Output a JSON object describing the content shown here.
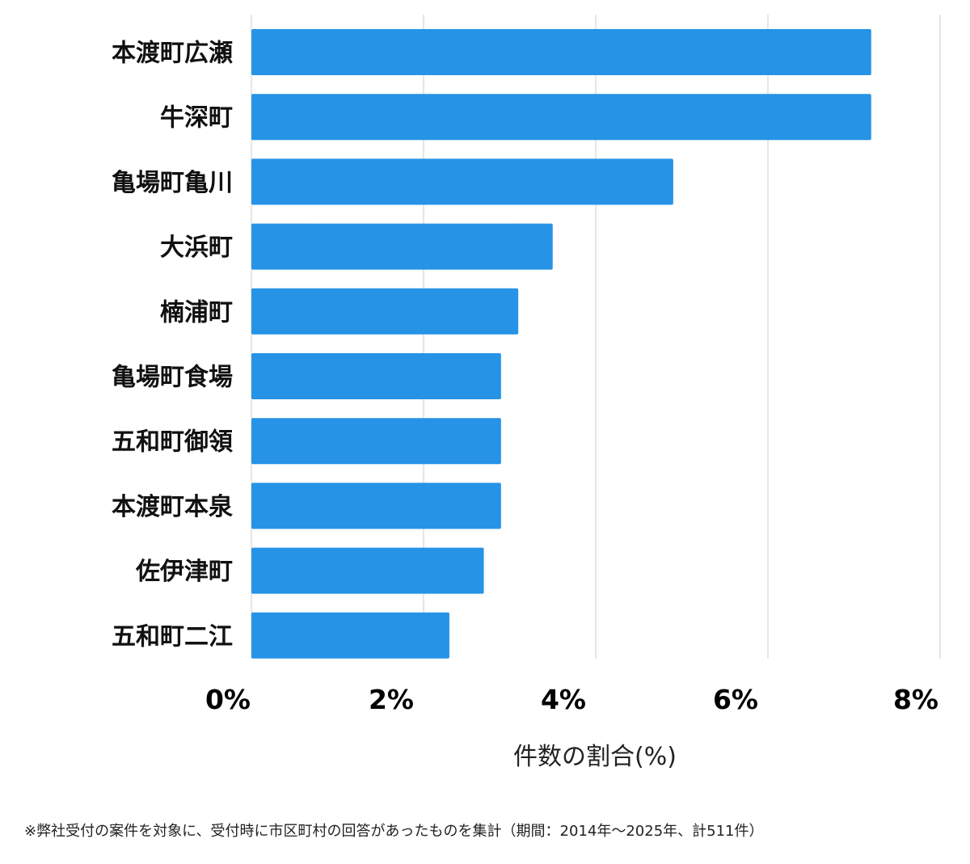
{
  "chart_data": {
    "type": "bar",
    "orientation": "horizontal",
    "categories": [
      "本渡町広瀬",
      "牛深町",
      "亀場町亀川",
      "大浜町",
      "楠浦町",
      "亀場町食場",
      "五和町御領",
      "本渡町本泉",
      "佐伊津町",
      "五和町二江"
    ],
    "values": [
      7.2,
      7.2,
      4.9,
      3.5,
      3.1,
      2.9,
      2.9,
      2.9,
      2.7,
      2.3
    ],
    "xlabel": "件数の割合(%)",
    "xlim": [
      0,
      8
    ],
    "xticks": [
      0,
      2,
      4,
      6,
      8
    ],
    "xtick_labels": [
      "0%",
      "2%",
      "4%",
      "6%",
      "8%"
    ],
    "grid": true,
    "bar_color": "#2693e6",
    "grid_color": "#dddddd"
  },
  "footnote": "※弊社受付の案件を対象に、受付時に市区町村の回答があったものを集計（期間：2014年～2025年、計511件）"
}
